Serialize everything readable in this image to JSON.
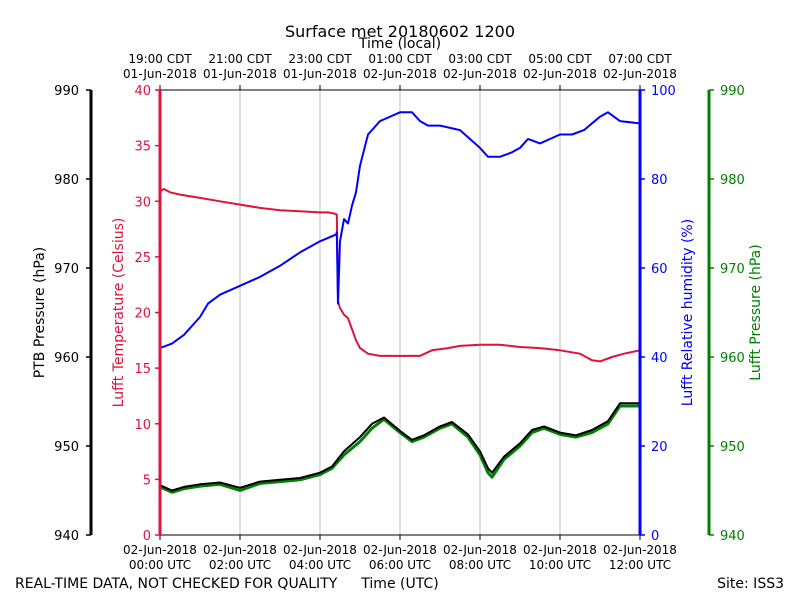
{
  "chart_data": {
    "type": "line",
    "title": "Surface met 20180602 1200",
    "top_axis_label": "Time (local)",
    "bottom_axis_label": "Time (UTC)",
    "footer_left": "REAL-TIME DATA, NOT CHECKED FOR QUALITY",
    "footer_right": "Site: ISS3",
    "x_range_hours": [
      0,
      12
    ],
    "bottom_ticks": [
      {
        "h": 0,
        "l1": "02-Jun-2018",
        "l2": "00:00 UTC"
      },
      {
        "h": 2,
        "l1": "02-Jun-2018",
        "l2": "02:00 UTC"
      },
      {
        "h": 4,
        "l1": "02-Jun-2018",
        "l2": "04:00 UTC"
      },
      {
        "h": 6,
        "l1": "02-Jun-2018",
        "l2": "06:00 UTC"
      },
      {
        "h": 8,
        "l1": "02-Jun-2018",
        "l2": "08:00 UTC"
      },
      {
        "h": 10,
        "l1": "02-Jun-2018",
        "l2": "10:00 UTC"
      },
      {
        "h": 12,
        "l1": "02-Jun-2018",
        "l2": "12:00 UTC"
      }
    ],
    "top_ticks": [
      {
        "h": 0,
        "l1": "19:00 CDT",
        "l2": "01-Jun-2018"
      },
      {
        "h": 2,
        "l1": "21:00 CDT",
        "l2": "01-Jun-2018"
      },
      {
        "h": 4,
        "l1": "23:00 CDT",
        "l2": "01-Jun-2018"
      },
      {
        "h": 6,
        "l1": "01:00 CDT",
        "l2": "02-Jun-2018"
      },
      {
        "h": 8,
        "l1": "03:00 CDT",
        "l2": "02-Jun-2018"
      },
      {
        "h": 10,
        "l1": "05:00 CDT",
        "l2": "02-Jun-2018"
      },
      {
        "h": 12,
        "l1": "07:00 CDT",
        "l2": "02-Jun-2018"
      }
    ],
    "axes": {
      "ptb": {
        "label": "PTB Pressure (hPa)",
        "range": [
          940,
          990
        ],
        "ticks": [
          940,
          950,
          960,
          970,
          980,
          990
        ],
        "color": "#000000"
      },
      "temp": {
        "label": "Lufft Temperature (Celsius)",
        "range": [
          0,
          40
        ],
        "ticks": [
          0,
          5,
          10,
          15,
          20,
          25,
          30,
          35,
          40
        ],
        "color": "#dc143c"
      },
      "rh": {
        "label": "Lufft Relative humidity (%)",
        "range": [
          0,
          100
        ],
        "ticks": [
          0,
          20,
          40,
          60,
          80,
          100
        ],
        "color": "#0000ff"
      },
      "lufft_p": {
        "label": "Lufft Pressure (hPa)",
        "range": [
          940,
          990
        ],
        "ticks": [
          940,
          950,
          960,
          970,
          980,
          990
        ],
        "color": "#008000"
      }
    },
    "series": [
      {
        "name": "Lufft Temperature",
        "axis": "temp",
        "color": "#dc143c",
        "points": [
          [
            0,
            30.9
          ],
          [
            0.1,
            31.1
          ],
          [
            0.25,
            30.8
          ],
          [
            0.5,
            30.6
          ],
          [
            1,
            30.3
          ],
          [
            1.5,
            30.0
          ],
          [
            2,
            29.7
          ],
          [
            2.5,
            29.4
          ],
          [
            3,
            29.2
          ],
          [
            3.5,
            29.1
          ],
          [
            4,
            29.0
          ],
          [
            4.2,
            29.0
          ],
          [
            4.35,
            28.9
          ],
          [
            4.42,
            28.8
          ],
          [
            4.45,
            21.0
          ],
          [
            4.5,
            20.4
          ],
          [
            4.6,
            19.8
          ],
          [
            4.7,
            19.5
          ],
          [
            4.8,
            18.5
          ],
          [
            4.9,
            17.5
          ],
          [
            5,
            16.8
          ],
          [
            5.2,
            16.3
          ],
          [
            5.5,
            16.1
          ],
          [
            6,
            16.1
          ],
          [
            6.5,
            16.1
          ],
          [
            6.8,
            16.6
          ],
          [
            7.2,
            16.8
          ],
          [
            7.5,
            17.0
          ],
          [
            8,
            17.1
          ],
          [
            8.5,
            17.1
          ],
          [
            9,
            16.9
          ],
          [
            9.5,
            16.8
          ],
          [
            10,
            16.6
          ],
          [
            10.5,
            16.3
          ],
          [
            10.8,
            15.7
          ],
          [
            11,
            15.6
          ],
          [
            11.3,
            16.0
          ],
          [
            11.6,
            16.3
          ],
          [
            12,
            16.6
          ]
        ]
      },
      {
        "name": "Lufft Relative humidity",
        "axis": "rh",
        "color": "#0000ff",
        "points": [
          [
            0,
            42
          ],
          [
            0.3,
            43
          ],
          [
            0.6,
            45
          ],
          [
            1,
            49
          ],
          [
            1.2,
            52
          ],
          [
            1.5,
            54
          ],
          [
            2,
            56
          ],
          [
            2.5,
            58
          ],
          [
            3,
            60.5
          ],
          [
            3.5,
            63.5
          ],
          [
            4,
            66
          ],
          [
            4.4,
            67.5
          ],
          [
            4.42,
            68
          ],
          [
            4.45,
            52
          ],
          [
            4.5,
            66
          ],
          [
            4.6,
            71
          ],
          [
            4.7,
            70
          ],
          [
            4.8,
            74
          ],
          [
            4.9,
            77
          ],
          [
            5,
            83
          ],
          [
            5.2,
            90
          ],
          [
            5.5,
            93
          ],
          [
            6,
            95
          ],
          [
            6.3,
            95
          ],
          [
            6.5,
            93
          ],
          [
            6.7,
            92
          ],
          [
            7,
            92
          ],
          [
            7.5,
            91
          ],
          [
            8,
            87
          ],
          [
            8.2,
            85
          ],
          [
            8.5,
            85
          ],
          [
            8.8,
            86
          ],
          [
            9,
            87
          ],
          [
            9.2,
            89
          ],
          [
            9.5,
            88
          ],
          [
            10,
            90
          ],
          [
            10.3,
            90
          ],
          [
            10.6,
            91
          ],
          [
            11,
            94
          ],
          [
            11.2,
            95
          ],
          [
            11.5,
            93
          ],
          [
            12,
            92.5
          ]
        ]
      },
      {
        "name": "Lufft Pressure",
        "axis": "lufft_p",
        "color": "#008000",
        "width": 3,
        "points": [
          [
            0,
            945.4
          ],
          [
            0.3,
            944.8
          ],
          [
            0.6,
            945.2
          ],
          [
            1,
            945.5
          ],
          [
            1.5,
            945.7
          ],
          [
            2,
            945.0
          ],
          [
            2.5,
            945.8
          ],
          [
            3,
            946.0
          ],
          [
            3.5,
            946.2
          ],
          [
            4,
            946.8
          ],
          [
            4.3,
            947.5
          ],
          [
            4.6,
            949.0
          ],
          [
            5,
            950.5
          ],
          [
            5.3,
            952.0
          ],
          [
            5.6,
            953.0
          ],
          [
            6,
            951.5
          ],
          [
            6.3,
            950.5
          ],
          [
            6.6,
            951.0
          ],
          [
            7,
            952.0
          ],
          [
            7.3,
            952.5
          ],
          [
            7.7,
            951.0
          ],
          [
            8,
            949.0
          ],
          [
            8.2,
            947.0
          ],
          [
            8.3,
            946.5
          ],
          [
            8.6,
            948.5
          ],
          [
            9,
            950.0
          ],
          [
            9.3,
            951.5
          ],
          [
            9.6,
            952.0
          ],
          [
            10,
            951.3
          ],
          [
            10.4,
            951.0
          ],
          [
            10.8,
            951.5
          ],
          [
            11.2,
            952.5
          ],
          [
            11.5,
            954.5
          ],
          [
            12,
            954.5
          ]
        ]
      },
      {
        "name": "PTB Pressure",
        "axis": "ptb",
        "color": "#000000",
        "points": [
          [
            0,
            945.6
          ],
          [
            0.3,
            945.0
          ],
          [
            0.6,
            945.4
          ],
          [
            1,
            945.7
          ],
          [
            1.5,
            945.9
          ],
          [
            2,
            945.3
          ],
          [
            2.5,
            946.0
          ],
          [
            3,
            946.2
          ],
          [
            3.5,
            946.4
          ],
          [
            4,
            947.0
          ],
          [
            4.3,
            947.7
          ],
          [
            4.6,
            949.4
          ],
          [
            5,
            951.0
          ],
          [
            5.3,
            952.5
          ],
          [
            5.6,
            953.2
          ],
          [
            6,
            951.7
          ],
          [
            6.3,
            950.7
          ],
          [
            6.6,
            951.2
          ],
          [
            7,
            952.2
          ],
          [
            7.3,
            952.7
          ],
          [
            7.7,
            951.3
          ],
          [
            8,
            949.4
          ],
          [
            8.2,
            947.5
          ],
          [
            8.3,
            947.0
          ],
          [
            8.6,
            948.8
          ],
          [
            9,
            950.3
          ],
          [
            9.3,
            951.8
          ],
          [
            9.6,
            952.2
          ],
          [
            10,
            951.5
          ],
          [
            10.4,
            951.2
          ],
          [
            10.8,
            951.8
          ],
          [
            11.2,
            952.8
          ],
          [
            11.5,
            954.8
          ],
          [
            12,
            954.8
          ]
        ]
      }
    ]
  }
}
